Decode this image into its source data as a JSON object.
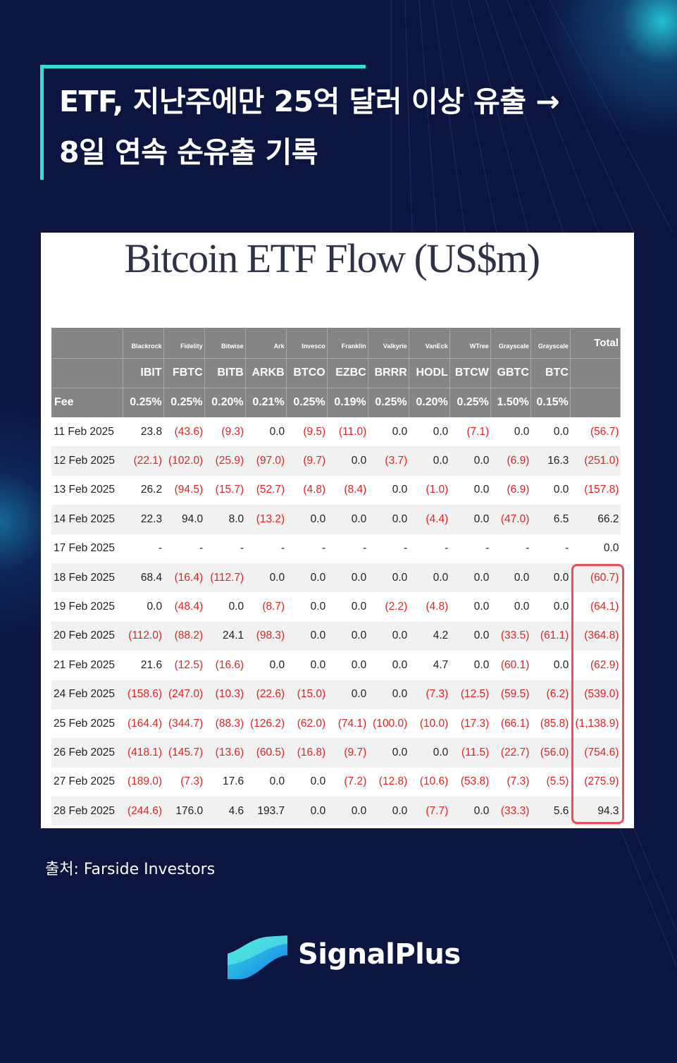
{
  "headline": {
    "line1": "ETF, 지난주에만 25억 달러 이상 유출 →",
    "line2": "8일 연속 순유출 기록"
  },
  "chart_title": "Bitcoin ETF Flow (US$m)",
  "table": {
    "issuers": [
      "Blackrock",
      "Fidelity",
      "Bitwise",
      "Ark",
      "Invesco",
      "Franklin",
      "Valkyrie",
      "VanEck",
      "WTree",
      "Grayscale",
      "Grayscale"
    ],
    "total_label": "Total",
    "tickers": [
      "IBIT",
      "FBTC",
      "BITB",
      "ARKB",
      "BTCO",
      "EZBC",
      "BRRR",
      "HODL",
      "BTCW",
      "GBTC",
      "BTC"
    ],
    "fee_label": "Fee",
    "fees": [
      "0.25%",
      "0.25%",
      "0.20%",
      "0.21%",
      "0.25%",
      "0.19%",
      "0.25%",
      "0.20%",
      "0.25%",
      "1.50%",
      "0.15%"
    ],
    "rows": [
      {
        "date": "11 Feb 2025",
        "values": [
          "23.8",
          "(43.6)",
          "(9.3)",
          "0.0",
          "(9.5)",
          "(11.0)",
          "0.0",
          "0.0",
          "(7.1)",
          "0.0",
          "0.0",
          "(56.7)"
        ]
      },
      {
        "date": "12 Feb 2025",
        "values": [
          "(22.1)",
          "(102.0)",
          "(25.9)",
          "(97.0)",
          "(9.7)",
          "0.0",
          "(3.7)",
          "0.0",
          "0.0",
          "(6.9)",
          "16.3",
          "(251.0)"
        ]
      },
      {
        "date": "13 Feb 2025",
        "values": [
          "26.2",
          "(94.5)",
          "(15.7)",
          "(52.7)",
          "(4.8)",
          "(8.4)",
          "0.0",
          "(1.0)",
          "0.0",
          "(6.9)",
          "0.0",
          "(157.8)"
        ]
      },
      {
        "date": "14 Feb 2025",
        "values": [
          "22.3",
          "94.0",
          "8.0",
          "(13.2)",
          "0.0",
          "0.0",
          "0.0",
          "(4.4)",
          "0.0",
          "(47.0)",
          "6.5",
          "66.2"
        ]
      },
      {
        "date": "17 Feb 2025",
        "values": [
          "-",
          "-",
          "-",
          "-",
          "-",
          "-",
          "-",
          "-",
          "-",
          "-",
          "-",
          "0.0"
        ]
      },
      {
        "date": "18 Feb 2025",
        "values": [
          "68.4",
          "(16.4)",
          "(112.7)",
          "0.0",
          "0.0",
          "0.0",
          "0.0",
          "0.0",
          "0.0",
          "0.0",
          "0.0",
          "(60.7)"
        ]
      },
      {
        "date": "19 Feb 2025",
        "values": [
          "0.0",
          "(48.4)",
          "0.0",
          "(8.7)",
          "0.0",
          "0.0",
          "(2.2)",
          "(4.8)",
          "0.0",
          "0.0",
          "0.0",
          "(64.1)"
        ]
      },
      {
        "date": "20 Feb 2025",
        "values": [
          "(112.0)",
          "(88.2)",
          "24.1",
          "(98.3)",
          "0.0",
          "0.0",
          "0.0",
          "4.2",
          "0.0",
          "(33.5)",
          "(61.1)",
          "(364.8)"
        ]
      },
      {
        "date": "21 Feb 2025",
        "values": [
          "21.6",
          "(12.5)",
          "(16.6)",
          "0.0",
          "0.0",
          "0.0",
          "0.0",
          "4.7",
          "0.0",
          "(60.1)",
          "0.0",
          "(62.9)"
        ]
      },
      {
        "date": "24 Feb 2025",
        "values": [
          "(158.6)",
          "(247.0)",
          "(10.3)",
          "(22.6)",
          "(15.0)",
          "0.0",
          "0.0",
          "(7.3)",
          "(12.5)",
          "(59.5)",
          "(6.2)",
          "(539.0)"
        ]
      },
      {
        "date": "25 Feb 2025",
        "values": [
          "(164.4)",
          "(344.7)",
          "(88.3)",
          "(126.2)",
          "(62.0)",
          "(74.1)",
          "(100.0)",
          "(10.0)",
          "(17.3)",
          "(66.1)",
          "(85.8)",
          "(1,138.9)"
        ]
      },
      {
        "date": "26 Feb 2025",
        "values": [
          "(418.1)",
          "(145.7)",
          "(13.6)",
          "(60.5)",
          "(16.8)",
          "(9.7)",
          "0.0",
          "0.0",
          "(11.5)",
          "(22.7)",
          "(56.0)",
          "(754.6)"
        ]
      },
      {
        "date": "27 Feb 2025",
        "values": [
          "(189.0)",
          "(7.3)",
          "17.6",
          "0.0",
          "0.0",
          "(7.2)",
          "(12.8)",
          "(10.6)",
          "(53.8)",
          "(7.3)",
          "(5.5)",
          "(275.9)"
        ]
      },
      {
        "date": "28 Feb 2025",
        "values": [
          "(244.6)",
          "176.0",
          "4.6",
          "193.7",
          "0.0",
          "0.0",
          "0.0",
          "(7.7)",
          "0.0",
          "(33.3)",
          "5.6",
          "94.3"
        ]
      }
    ]
  },
  "source": "출처: Farside Investors",
  "brand": {
    "name": "SignalPlus",
    "accent": "#2ee0d6"
  }
}
